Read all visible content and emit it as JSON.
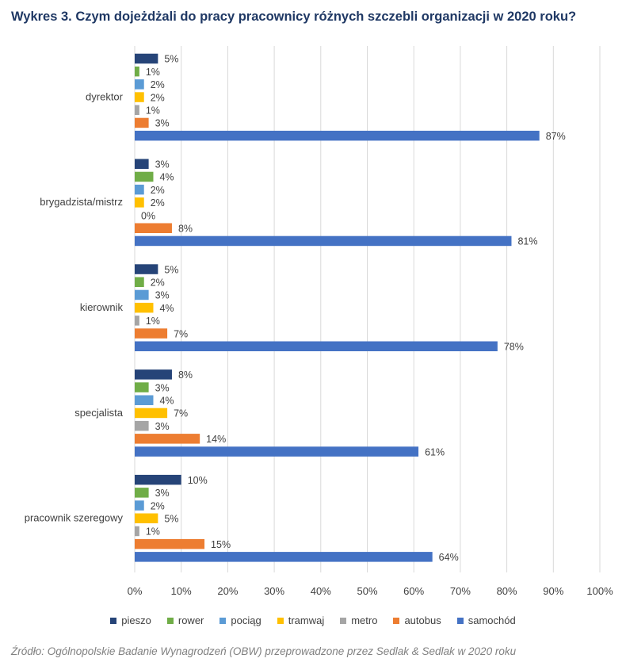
{
  "title": "Wykres 3. Czym dojeżdżali do pracy pracownicy różnych szczebli organizacji w 2020 roku?",
  "source": "Źródło: Ogólnopolskie Badanie Wynagrodzeń (OBW) przeprowadzone przez Sedlak & Sedlak w 2020 roku",
  "chart_data": {
    "type": "bar",
    "orientation": "horizontal",
    "categories": [
      "dyrektor",
      "brygadzista/mistrz",
      "kierownik",
      "specjalista",
      "pracownik szeregowy"
    ],
    "series": [
      {
        "name": "pieszo",
        "color": "#264478",
        "values": [
          5,
          3,
          5,
          8,
          10
        ],
        "labels": [
          "5%",
          "3%",
          "5%",
          "8%",
          "10%"
        ]
      },
      {
        "name": "rower",
        "color": "#70ad47",
        "values": [
          1,
          4,
          2,
          3,
          3
        ],
        "labels": [
          "1%",
          "4%",
          "2%",
          "3%",
          "3%"
        ]
      },
      {
        "name": "pociąg",
        "color": "#5b9bd5",
        "values": [
          2,
          2,
          3,
          4,
          2
        ],
        "labels": [
          "2%",
          "2%",
          "3%",
          "4%",
          "2%"
        ]
      },
      {
        "name": "tramwaj",
        "color": "#ffc000",
        "values": [
          2,
          2,
          4,
          7,
          5
        ],
        "labels": [
          "2%",
          "2%",
          "4%",
          "7%",
          "5%"
        ]
      },
      {
        "name": "metro",
        "color": "#a5a5a5",
        "values": [
          1,
          0,
          1,
          3,
          1
        ],
        "labels": [
          "1%",
          "0%",
          "1%",
          "3%",
          "1%"
        ]
      },
      {
        "name": "autobus",
        "color": "#ed7d31",
        "values": [
          3,
          8,
          7,
          14,
          15
        ],
        "labels": [
          "3%",
          "8%",
          "7%",
          "14%",
          "15%"
        ]
      },
      {
        "name": "samochód",
        "color": "#4472c4",
        "values": [
          87,
          81,
          78,
          61,
          64
        ],
        "labels": [
          "87%",
          "81%",
          "78%",
          "61%",
          "64%"
        ]
      }
    ],
    "xlim": [
      0,
      100
    ],
    "xticks": [
      "0%",
      "10%",
      "20%",
      "30%",
      "40%",
      "50%",
      "60%",
      "70%",
      "80%",
      "90%",
      "100%"
    ],
    "grid": true,
    "legend": "bottom"
  }
}
